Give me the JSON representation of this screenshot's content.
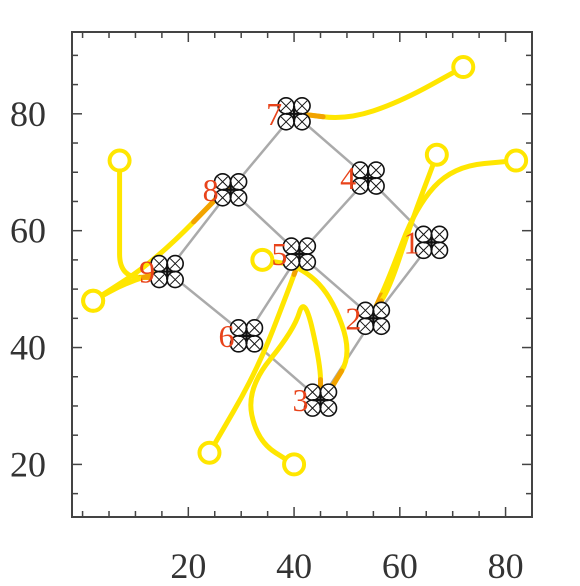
{
  "chart_data": {
    "type": "scatter",
    "title": "",
    "xlabel": "",
    "ylabel": "",
    "xlim": [
      -2,
      85
    ],
    "ylim": [
      11,
      94
    ],
    "x_ticks": [
      20,
      40,
      60,
      80
    ],
    "y_ticks": [
      20,
      40,
      60,
      80
    ],
    "x_tick_labels": [
      "20",
      "40",
      "60",
      "80"
    ],
    "y_tick_labels": [
      "20",
      "40",
      "60",
      "80"
    ],
    "grid": false,
    "colors": {
      "trajectory": "#ffe600",
      "trajectory_end": "#f2a300",
      "formation_edge": "#aaaaaa",
      "label": "#e8431a",
      "axes": "#444444"
    },
    "drones": [
      {
        "id": "1",
        "label": "1",
        "x": 66,
        "y": 58
      },
      {
        "id": "2",
        "label": "2",
        "x": 55,
        "y": 45
      },
      {
        "id": "3",
        "label": "3",
        "x": 45,
        "y": 31
      },
      {
        "id": "4",
        "label": "4",
        "x": 54,
        "y": 69
      },
      {
        "id": "5",
        "label": "5",
        "x": 41,
        "y": 56
      },
      {
        "id": "6",
        "label": "6",
        "x": 31,
        "y": 42
      },
      {
        "id": "7",
        "label": "7",
        "x": 40,
        "y": 80
      },
      {
        "id": "8",
        "label": "8",
        "x": 28,
        "y": 67
      },
      {
        "id": "9",
        "label": "9",
        "x": 16,
        "y": 53
      }
    ],
    "formation_edges": [
      [
        "7",
        "8"
      ],
      [
        "8",
        "9"
      ],
      [
        "9",
        "6"
      ],
      [
        "6",
        "3"
      ],
      [
        "3",
        "2"
      ],
      [
        "2",
        "1"
      ],
      [
        "1",
        "4"
      ],
      [
        "4",
        "7"
      ],
      [
        "8",
        "5"
      ],
      [
        "5",
        "2"
      ],
      [
        "4",
        "5"
      ],
      [
        "5",
        "6"
      ]
    ],
    "trajectories": [
      {
        "drone": "1",
        "points": [
          [
            82,
            72
          ],
          [
            70,
            71
          ],
          [
            63,
            64
          ],
          [
            58,
            52
          ],
          [
            55,
            46
          ]
        ]
      },
      {
        "drone": "2",
        "points": [
          [
            67,
            73
          ],
          [
            62,
            61
          ],
          [
            58,
            50
          ],
          [
            55,
            46
          ]
        ]
      },
      {
        "drone": "3",
        "points": [
          [
            40,
            20
          ],
          [
            33,
            24
          ],
          [
            31,
            33
          ],
          [
            40,
            43
          ],
          [
            42,
            49
          ],
          [
            45,
            37
          ],
          [
            45,
            32
          ]
        ]
      },
      {
        "drone": "4",
        "points": [
          [
            72,
            88
          ],
          [
            60,
            82
          ],
          [
            50,
            79
          ],
          [
            41,
            80
          ]
        ]
      },
      {
        "drone": "5",
        "points": [
          [
            24,
            22
          ],
          [
            33,
            36
          ],
          [
            39,
            50
          ],
          [
            41,
            55
          ]
        ]
      },
      {
        "drone": "6",
        "points": [
          [
            34,
            55
          ],
          [
            41,
            54
          ],
          [
            47,
            49
          ],
          [
            51,
            39
          ],
          [
            47,
            33
          ]
        ]
      },
      {
        "drone": "7",
        "points": [
          [
            2,
            48
          ],
          [
            14,
            55
          ],
          [
            28,
            68
          ]
        ]
      },
      {
        "drone": "8",
        "points": [
          [
            7,
            72
          ],
          [
            7,
            60
          ],
          [
            7,
            52
          ],
          [
            15,
            52
          ]
        ]
      },
      {
        "drone": "9",
        "points": [
          [
            2,
            48
          ],
          [
            8,
            51
          ],
          [
            15,
            53
          ]
        ]
      }
    ]
  }
}
